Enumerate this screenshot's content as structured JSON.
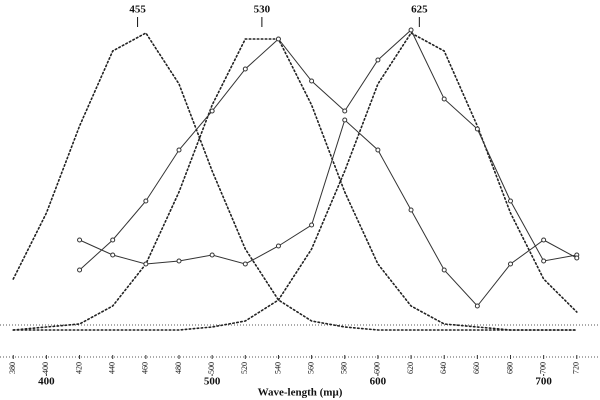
{
  "chart_data": {
    "type": "line",
    "xlabel": "Wave-length (mμ)",
    "x": [
      380,
      400,
      420,
      440,
      460,
      480,
      500,
      520,
      540,
      560,
      580,
      600,
      620,
      640,
      660,
      680,
      700,
      720
    ],
    "xlim": [
      372,
      734
    ],
    "ylim": [
      0,
      100
    ],
    "xticks": [
      380,
      400,
      420,
      440,
      460,
      480,
      500,
      520,
      540,
      560,
      580,
      600,
      620,
      640,
      660,
      680,
      700,
      720
    ],
    "xticks_major": [
      400,
      500,
      600,
      700
    ],
    "peaks": [
      455,
      530,
      625
    ],
    "series": [
      {
        "color": "#222222",
        "style": "dotted",
        "values": [
          17,
          39,
          68,
          93,
          99,
          82,
          53,
          27,
          10,
          3,
          1,
          0,
          0,
          0,
          0,
          0,
          0,
          0
        ]
      },
      {
        "color": "#222222",
        "style": "dotted",
        "values": [
          0,
          1,
          2,
          8,
          22,
          46,
          75,
          97,
          97,
          75,
          46,
          22,
          8,
          2,
          1,
          0,
          0,
          0
        ]
      },
      {
        "color": "#222222",
        "style": "dotted",
        "values": [
          0,
          0,
          0,
          0,
          0,
          0,
          1,
          3,
          10,
          27,
          53,
          82,
          99,
          93,
          68,
          39,
          17,
          6
        ]
      },
      {
        "color": "#333333",
        "style": "circles",
        "values": [
          null,
          null,
          20,
          30,
          43,
          60,
          73,
          87,
          97,
          83,
          73,
          90,
          100,
          77,
          67,
          43,
          23,
          25
        ]
      },
      {
        "color": "#333333",
        "style": "circles",
        "values": [
          null,
          null,
          30,
          25,
          22,
          23,
          25,
          22,
          28,
          35,
          70,
          60,
          40,
          20,
          8,
          22,
          30,
          24
        ]
      }
    ]
  }
}
